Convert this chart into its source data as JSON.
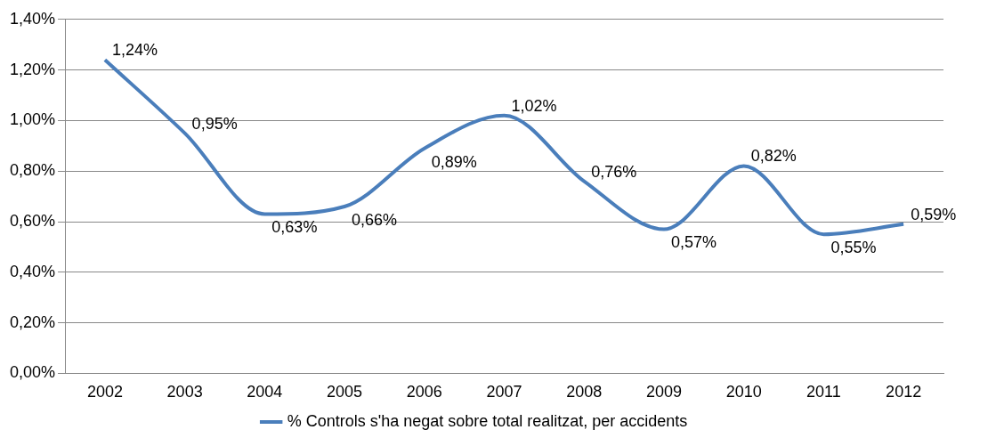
{
  "chart_data": {
    "type": "line",
    "categories": [
      "2002",
      "2003",
      "2004",
      "2005",
      "2006",
      "2007",
      "2008",
      "2009",
      "2010",
      "2011",
      "2012"
    ],
    "series": [
      {
        "name": "% Controls s'ha negat sobre total realitzat, per accidents",
        "color": "#4a7ebb",
        "values": [
          1.24,
          0.95,
          0.63,
          0.66,
          0.89,
          1.02,
          0.76,
          0.57,
          0.82,
          0.55,
          0.59
        ],
        "value_labels": [
          "1,24%",
          "0,95%",
          "0,63%",
          "0,66%",
          "0,89%",
          "1,02%",
          "0,76%",
          "0,57%",
          "0,82%",
          "0,55%",
          "0,59%"
        ]
      }
    ],
    "ylim": [
      0,
      1.4
    ],
    "yticks": [
      {
        "value": 0,
        "label": "0,00%"
      },
      {
        "value": 0.2,
        "label": "0,20%"
      },
      {
        "value": 0.4,
        "label": "0,40%"
      },
      {
        "value": 0.6,
        "label": "0,60%"
      },
      {
        "value": 0.8,
        "label": "0,80%"
      },
      {
        "value": 1,
        "label": "1,00%"
      },
      {
        "value": 1.2,
        "label": "1,20%"
      },
      {
        "value": 1.4,
        "label": "1,40%"
      }
    ],
    "grid": "y",
    "legend": "bottom",
    "marker": "none",
    "line_style": "solid"
  }
}
